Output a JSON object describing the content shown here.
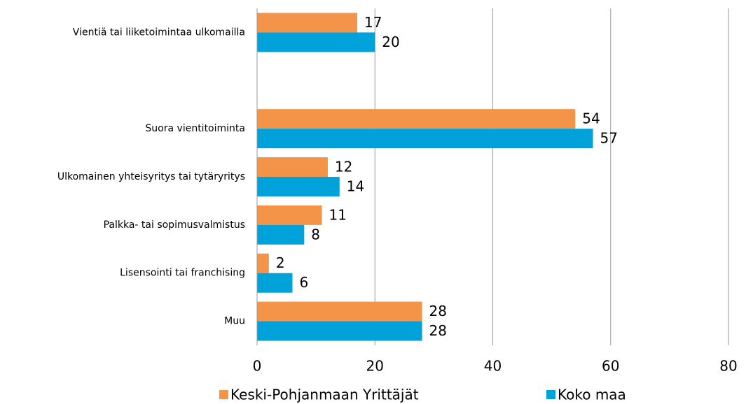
{
  "chart_data": {
    "type": "hbar",
    "categories": [
      "Vientiä tai liiketoimintaa ulkomailla",
      null,
      "Suora vientitoiminta",
      "Ulkomainen yhteisyritys tai tytäryritys",
      "Palkka- tai sopimusvalmistus",
      "Lisensointi tai franchising",
      "Muu"
    ],
    "series": [
      {
        "name": "Keski-Pohjanmaan Yrittäjät",
        "color": "#f39448",
        "values": [
          17,
          null,
          54,
          12,
          11,
          2,
          28
        ]
      },
      {
        "name": "Koko maa",
        "color": "#00a2d9",
        "values": [
          20,
          null,
          57,
          14,
          8,
          6,
          28
        ]
      }
    ],
    "xlim": [
      0,
      80
    ],
    "xticks": [
      0,
      20,
      40,
      60,
      80
    ],
    "grid": true,
    "legend": "bottom"
  }
}
